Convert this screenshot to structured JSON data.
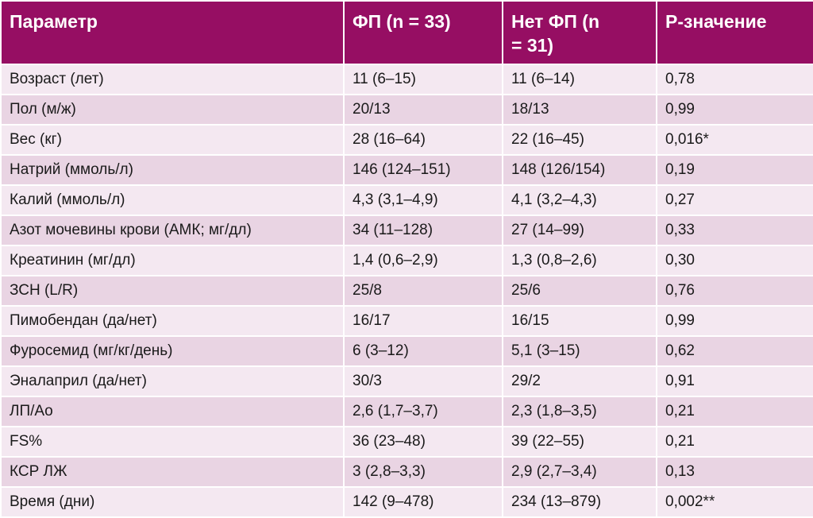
{
  "table": {
    "header": [
      "Параметр",
      "ФП (n = 33)",
      "Нет ФП (n = 31)",
      "P-значение"
    ],
    "rows": [
      [
        "Возраст (лет)",
        "11 (6–15)",
        "11 (6–14)",
        "0,78"
      ],
      [
        "Пол (м/ж)",
        "20/13",
        "18/13",
        "0,99"
      ],
      [
        "Вес (кг)",
        "28 (16–64)",
        "22 (16–45)",
        "0,016*"
      ],
      [
        "Натрий (ммоль/л)",
        "146 (124–151)",
        "148 (126/154)",
        "0,19"
      ],
      [
        "Калий (ммоль/л)",
        "4,3 (3,1–4,9)",
        "4,1 (3,2–4,3)",
        "0,27"
      ],
      [
        "Азот мочевины крови (АМК; мг/дл)",
        "34 (11–128)",
        "27 (14–99)",
        "0,33"
      ],
      [
        "Креатинин (мг/дл)",
        "1,4 (0,6–2,9)",
        "1,3 (0,8–2,6)",
        "0,30"
      ],
      [
        "ЗСН (L/R)",
        "25/8",
        "25/6",
        "0,76"
      ],
      [
        "Пимобендан (да/нет)",
        "16/17",
        "16/15",
        "0,99"
      ],
      [
        "Фуросемид (мг/кг/день)",
        "6 (3–12)",
        "5,1 (3–15)",
        "0,62"
      ],
      [
        "Эналаприл (да/нет)",
        "30/3",
        "29/2",
        "0,91"
      ],
      [
        "ЛП/Ао",
        "2,6 (1,7–3,7)",
        "2,3 (1,8–3,5)",
        "0,21"
      ],
      [
        "FS%",
        "36 (23–48)",
        "39 (22–55)",
        "0,21"
      ],
      [
        "КСР ЛЖ",
        "3 (2,8–3,3)",
        "2,9 (2,7–3,4)",
        "0,13"
      ],
      [
        "Время (дни)",
        "142 (9–478)",
        "234 (13–879)",
        "0,002**"
      ]
    ]
  }
}
